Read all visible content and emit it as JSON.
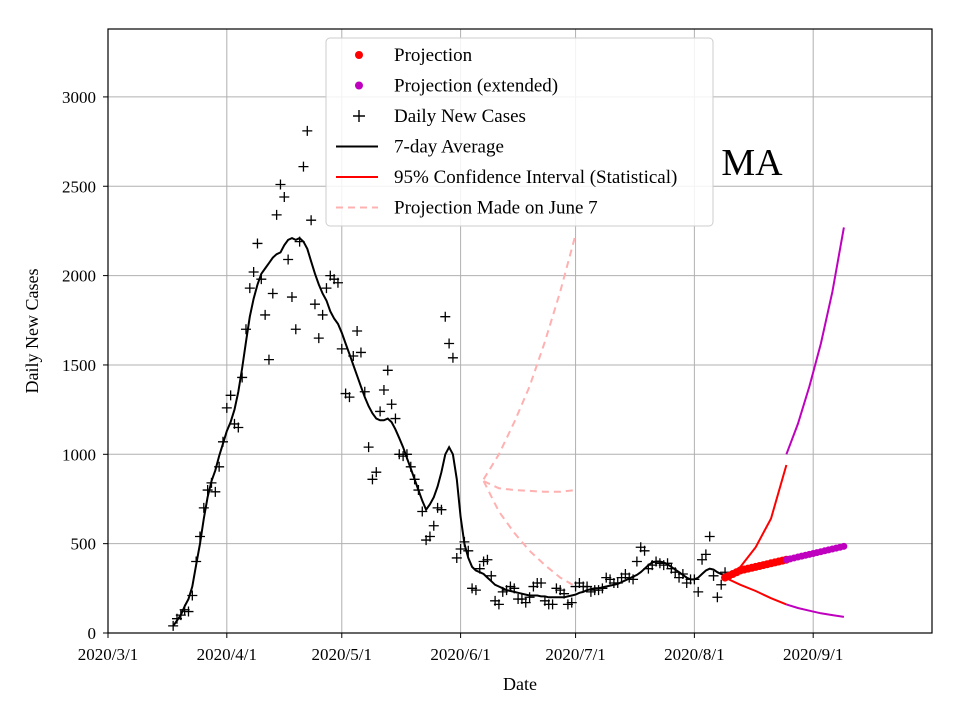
{
  "chart_data": {
    "type": "scatter",
    "region_label": "MA",
    "xlabel": "Date",
    "ylabel": "Daily New Cases",
    "x_unit": "days since 2020-03-01",
    "xlim": [
      0,
      215
    ],
    "ylim": [
      0,
      3380
    ],
    "x_ticks": [
      {
        "day": 0,
        "label": "2020/3/1"
      },
      {
        "day": 31,
        "label": "2020/4/1"
      },
      {
        "day": 61,
        "label": "2020/5/1"
      },
      {
        "day": 92,
        "label": "2020/6/1"
      },
      {
        "day": 122,
        "label": "2020/7/1"
      },
      {
        "day": 153,
        "label": "2020/8/1"
      },
      {
        "day": 184,
        "label": "2020/9/1"
      }
    ],
    "y_ticks": [
      0,
      500,
      1000,
      1500,
      2000,
      2500,
      3000
    ],
    "grid": true,
    "legend": {
      "position": "top-center",
      "entries": [
        {
          "label": "Projection",
          "kind": "dot",
          "color": "#ff0000"
        },
        {
          "label": "Projection (extended)",
          "kind": "dot",
          "color": "#bf00bf"
        },
        {
          "label": "Daily New Cases",
          "kind": "plus",
          "color": "#000000"
        },
        {
          "label": "7-day Average",
          "kind": "line",
          "color": "#000000"
        },
        {
          "label": "95% Confidence Interval (Statistical)",
          "kind": "line",
          "color": "#ff0000"
        },
        {
          "label": "Projection Made on June 7",
          "kind": "dashed",
          "color": "#ffb0b0"
        }
      ]
    },
    "daily_cases": [
      [
        17,
        40
      ],
      [
        18,
        80
      ],
      [
        19,
        100
      ],
      [
        20,
        130
      ],
      [
        21,
        120
      ],
      [
        22,
        210
      ],
      [
        23,
        400
      ],
      [
        24,
        540
      ],
      [
        25,
        700
      ],
      [
        26,
        800
      ],
      [
        27,
        840
      ],
      [
        28,
        790
      ],
      [
        29,
        930
      ],
      [
        30,
        1070
      ],
      [
        31,
        1260
      ],
      [
        32,
        1330
      ],
      [
        33,
        1170
      ],
      [
        34,
        1150
      ],
      [
        35,
        1430
      ],
      [
        36,
        1700
      ],
      [
        37,
        1930
      ],
      [
        38,
        2020
      ],
      [
        39,
        2180
      ],
      [
        40,
        1980
      ],
      [
        41,
        1780
      ],
      [
        42,
        1530
      ],
      [
        43,
        1900
      ],
      [
        44,
        2340
      ],
      [
        45,
        2510
      ],
      [
        46,
        2440
      ],
      [
        47,
        2090
      ],
      [
        48,
        1880
      ],
      [
        49,
        1700
      ],
      [
        50,
        2190
      ],
      [
        51,
        2610
      ],
      [
        52,
        2810
      ],
      [
        53,
        2310
      ],
      [
        54,
        1840
      ],
      [
        55,
        1650
      ],
      [
        56,
        1780
      ],
      [
        57,
        1930
      ],
      [
        58,
        2000
      ],
      [
        59,
        1980
      ],
      [
        60,
        1960
      ],
      [
        61,
        1590
      ],
      [
        62,
        1340
      ],
      [
        63,
        1320
      ],
      [
        64,
        1550
      ],
      [
        65,
        1690
      ],
      [
        66,
        1570
      ],
      [
        67,
        1350
      ],
      [
        68,
        1040
      ],
      [
        69,
        860
      ],
      [
        70,
        900
      ],
      [
        71,
        1240
      ],
      [
        72,
        1360
      ],
      [
        73,
        1470
      ],
      [
        74,
        1280
      ],
      [
        75,
        1200
      ],
      [
        76,
        1000
      ],
      [
        77,
        990
      ],
      [
        78,
        1000
      ],
      [
        79,
        930
      ],
      [
        80,
        860
      ],
      [
        81,
        800
      ],
      [
        82,
        680
      ],
      [
        83,
        520
      ],
      [
        84,
        540
      ],
      [
        85,
        600
      ],
      [
        86,
        700
      ],
      [
        87,
        690
      ],
      [
        88,
        1770
      ],
      [
        89,
        1620
      ],
      [
        90,
        1540
      ],
      [
        91,
        420
      ],
      [
        92,
        470
      ],
      [
        93,
        510
      ],
      [
        94,
        460
      ],
      [
        95,
        250
      ],
      [
        96,
        240
      ],
      [
        97,
        360
      ],
      [
        98,
        400
      ],
      [
        99,
        410
      ],
      [
        100,
        320
      ],
      [
        101,
        180
      ],
      [
        102,
        160
      ],
      [
        103,
        230
      ],
      [
        104,
        240
      ],
      [
        105,
        260
      ],
      [
        106,
        250
      ],
      [
        107,
        190
      ],
      [
        108,
        190
      ],
      [
        109,
        170
      ],
      [
        110,
        200
      ],
      [
        111,
        260
      ],
      [
        112,
        280
      ],
      [
        113,
        280
      ],
      [
        114,
        180
      ],
      [
        115,
        160
      ],
      [
        116,
        160
      ],
      [
        117,
        250
      ],
      [
        118,
        240
      ],
      [
        119,
        220
      ],
      [
        120,
        160
      ],
      [
        121,
        170
      ],
      [
        122,
        260
      ],
      [
        123,
        280
      ],
      [
        124,
        260
      ],
      [
        125,
        260
      ],
      [
        126,
        230
      ],
      [
        127,
        240
      ],
      [
        128,
        240
      ],
      [
        129,
        250
      ],
      [
        130,
        310
      ],
      [
        131,
        300
      ],
      [
        132,
        280
      ],
      [
        133,
        280
      ],
      [
        134,
        310
      ],
      [
        135,
        330
      ],
      [
        136,
        310
      ],
      [
        137,
        300
      ],
      [
        138,
        400
      ],
      [
        139,
        480
      ],
      [
        140,
        460
      ],
      [
        141,
        360
      ],
      [
        142,
        380
      ],
      [
        143,
        400
      ],
      [
        144,
        390
      ],
      [
        145,
        380
      ],
      [
        146,
        390
      ],
      [
        147,
        360
      ],
      [
        148,
        340
      ],
      [
        149,
        310
      ],
      [
        150,
        330
      ],
      [
        151,
        280
      ],
      [
        152,
        300
      ],
      [
        153,
        300
      ],
      [
        154,
        230
      ],
      [
        155,
        410
      ],
      [
        156,
        440
      ],
      [
        157,
        540
      ],
      [
        158,
        320
      ],
      [
        159,
        200
      ],
      [
        160,
        270
      ],
      [
        161,
        340
      ]
    ],
    "seven_day_average": [
      [
        17,
        40
      ],
      [
        18,
        70
      ],
      [
        19,
        100
      ],
      [
        20,
        150
      ],
      [
        21,
        190
      ],
      [
        22,
        260
      ],
      [
        23,
        380
      ],
      [
        24,
        500
      ],
      [
        25,
        640
      ],
      [
        26,
        760
      ],
      [
        27,
        850
      ],
      [
        28,
        910
      ],
      [
        29,
        990
      ],
      [
        30,
        1060
      ],
      [
        31,
        1130
      ],
      [
        32,
        1180
      ],
      [
        33,
        1250
      ],
      [
        34,
        1350
      ],
      [
        35,
        1480
      ],
      [
        36,
        1630
      ],
      [
        37,
        1770
      ],
      [
        38,
        1870
      ],
      [
        39,
        1950
      ],
      [
        40,
        2010
      ],
      [
        41,
        2040
      ],
      [
        42,
        2070
      ],
      [
        43,
        2100
      ],
      [
        44,
        2120
      ],
      [
        45,
        2130
      ],
      [
        46,
        2170
      ],
      [
        47,
        2200
      ],
      [
        48,
        2210
      ],
      [
        49,
        2200
      ],
      [
        50,
        2210
      ],
      [
        51,
        2190
      ],
      [
        52,
        2150
      ],
      [
        53,
        2080
      ],
      [
        54,
        2010
      ],
      [
        55,
        1950
      ],
      [
        56,
        1900
      ],
      [
        57,
        1860
      ],
      [
        58,
        1800
      ],
      [
        59,
        1760
      ],
      [
        60,
        1730
      ],
      [
        61,
        1680
      ],
      [
        62,
        1620
      ],
      [
        63,
        1560
      ],
      [
        64,
        1500
      ],
      [
        65,
        1440
      ],
      [
        66,
        1380
      ],
      [
        67,
        1320
      ],
      [
        68,
        1270
      ],
      [
        69,
        1230
      ],
      [
        70,
        1200
      ],
      [
        71,
        1190
      ],
      [
        72,
        1190
      ],
      [
        73,
        1200
      ],
      [
        74,
        1180
      ],
      [
        75,
        1140
      ],
      [
        76,
        1090
      ],
      [
        77,
        1040
      ],
      [
        78,
        980
      ],
      [
        79,
        920
      ],
      [
        80,
        860
      ],
      [
        81,
        800
      ],
      [
        82,
        740
      ],
      [
        83,
        690
      ],
      [
        84,
        720
      ],
      [
        85,
        760
      ],
      [
        86,
        820
      ],
      [
        87,
        900
      ],
      [
        88,
        1000
      ],
      [
        89,
        1040
      ],
      [
        90,
        1000
      ],
      [
        91,
        860
      ],
      [
        92,
        650
      ],
      [
        93,
        500
      ],
      [
        94,
        420
      ],
      [
        95,
        370
      ],
      [
        96,
        350
      ],
      [
        97,
        340
      ],
      [
        98,
        330
      ],
      [
        99,
        310
      ],
      [
        100,
        290
      ],
      [
        101,
        270
      ],
      [
        102,
        260
      ],
      [
        103,
        250
      ],
      [
        104,
        240
      ],
      [
        105,
        235
      ],
      [
        106,
        230
      ],
      [
        107,
        225
      ],
      [
        108,
        220
      ],
      [
        109,
        215
      ],
      [
        110,
        210
      ],
      [
        111,
        210
      ],
      [
        112,
        210
      ],
      [
        113,
        205
      ],
      [
        114,
        205
      ],
      [
        115,
        200
      ],
      [
        116,
        200
      ],
      [
        117,
        200
      ],
      [
        118,
        200
      ],
      [
        119,
        200
      ],
      [
        120,
        205
      ],
      [
        121,
        210
      ],
      [
        122,
        215
      ],
      [
        123,
        225
      ],
      [
        124,
        230
      ],
      [
        125,
        240
      ],
      [
        126,
        245
      ],
      [
        127,
        250
      ],
      [
        128,
        250
      ],
      [
        129,
        255
      ],
      [
        130,
        260
      ],
      [
        131,
        265
      ],
      [
        132,
        270
      ],
      [
        133,
        275
      ],
      [
        134,
        285
      ],
      [
        135,
        295
      ],
      [
        136,
        305
      ],
      [
        137,
        315
      ],
      [
        138,
        325
      ],
      [
        139,
        340
      ],
      [
        140,
        360
      ],
      [
        141,
        380
      ],
      [
        142,
        395
      ],
      [
        143,
        400
      ],
      [
        144,
        400
      ],
      [
        145,
        395
      ],
      [
        146,
        385
      ],
      [
        147,
        370
      ],
      [
        148,
        355
      ],
      [
        149,
        340
      ],
      [
        150,
        325
      ],
      [
        151,
        310
      ],
      [
        152,
        300
      ],
      [
        153,
        300
      ],
      [
        154,
        310
      ],
      [
        155,
        330
      ],
      [
        156,
        350
      ],
      [
        157,
        360
      ],
      [
        158,
        355
      ],
      [
        159,
        340
      ],
      [
        160,
        330
      ],
      [
        161,
        325
      ]
    ],
    "projection": [
      [
        161,
        310
      ],
      [
        162,
        320
      ],
      [
        163,
        330
      ],
      [
        164,
        340
      ],
      [
        165,
        350
      ],
      [
        166,
        355
      ],
      [
        167,
        360
      ],
      [
        168,
        365
      ],
      [
        169,
        370
      ],
      [
        170,
        375
      ],
      [
        171,
        380
      ],
      [
        172,
        385
      ],
      [
        173,
        390
      ],
      [
        174,
        395
      ],
      [
        175,
        400
      ],
      [
        176,
        405
      ],
      [
        177,
        410
      ]
    ],
    "projection_extended": [
      [
        177,
        410
      ],
      [
        178,
        415
      ],
      [
        179,
        420
      ],
      [
        180,
        425
      ],
      [
        181,
        430
      ],
      [
        182,
        435
      ],
      [
        183,
        440
      ],
      [
        184,
        445
      ],
      [
        185,
        450
      ],
      [
        186,
        455
      ],
      [
        187,
        460
      ],
      [
        188,
        465
      ],
      [
        189,
        470
      ],
      [
        190,
        475
      ],
      [
        191,
        480
      ],
      [
        192,
        485
      ]
    ],
    "ci_upper": [
      [
        161,
        310
      ],
      [
        165,
        370
      ],
      [
        169,
        480
      ],
      [
        173,
        640
      ],
      [
        177,
        940
      ]
    ],
    "ci_lower": [
      [
        161,
        310
      ],
      [
        165,
        270
      ],
      [
        169,
        235
      ],
      [
        173,
        195
      ],
      [
        177,
        160
      ]
    ],
    "ci_upper_extended": [
      [
        177,
        1000
      ],
      [
        180,
        1170
      ],
      [
        183,
        1380
      ],
      [
        186,
        1620
      ],
      [
        189,
        1910
      ],
      [
        192,
        2270
      ]
    ],
    "ci_lower_extended": [
      [
        177,
        160
      ],
      [
        180,
        140
      ],
      [
        183,
        125
      ],
      [
        186,
        110
      ],
      [
        189,
        100
      ],
      [
        192,
        90
      ]
    ],
    "june7_projection": {
      "upper": [
        [
          98,
          860
        ],
        [
          102,
          1000
        ],
        [
          106,
          1180
        ],
        [
          110,
          1380
        ],
        [
          114,
          1630
        ],
        [
          118,
          1910
        ],
        [
          122,
          2230
        ]
      ],
      "middle": [
        [
          98,
          850
        ],
        [
          102,
          810
        ],
        [
          106,
          800
        ],
        [
          110,
          795
        ],
        [
          114,
          790
        ],
        [
          118,
          790
        ],
        [
          122,
          800
        ]
      ],
      "lower": [
        [
          98,
          850
        ],
        [
          102,
          680
        ],
        [
          106,
          560
        ],
        [
          110,
          460
        ],
        [
          114,
          380
        ],
        [
          118,
          310
        ],
        [
          122,
          260
        ]
      ]
    }
  }
}
